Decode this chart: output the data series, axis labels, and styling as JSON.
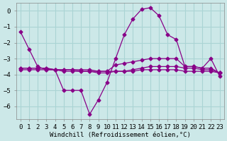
{
  "xlabel": "Windchill (Refroidissement éolien,°C)",
  "background_color": "#cce8e8",
  "grid_color": "#aad4d4",
  "line_color": "#880088",
  "x_ticks": [
    0,
    1,
    2,
    3,
    4,
    5,
    6,
    7,
    8,
    9,
    10,
    11,
    12,
    13,
    14,
    15,
    16,
    17,
    18,
    19,
    20,
    21,
    22,
    23
  ],
  "ylim": [
    -6.8,
    0.5
  ],
  "xlim": [
    -0.5,
    23.5
  ],
  "series1_x": [
    0,
    1,
    2,
    3,
    4,
    5,
    6,
    7,
    8,
    9,
    10,
    11,
    12,
    13,
    14,
    15,
    16,
    17,
    18,
    19,
    20,
    21,
    22,
    23
  ],
  "series1_y": [
    -1.3,
    -2.4,
    -3.5,
    -3.7,
    -3.7,
    -5.0,
    -5.0,
    -5.0,
    -6.5,
    -5.6,
    -4.5,
    -3.0,
    -1.5,
    -0.5,
    0.1,
    0.2,
    -0.3,
    -1.5,
    -1.8,
    -3.5,
    -3.5,
    -3.6,
    -3.0,
    -4.1
  ],
  "series2_x": [
    0,
    1,
    2,
    3,
    4,
    5,
    6,
    7,
    8,
    9,
    10,
    11,
    12,
    13,
    14,
    15,
    16,
    17,
    18,
    19,
    20,
    21,
    22,
    23
  ],
  "series2_y": [
    -3.6,
    -3.6,
    -3.6,
    -3.6,
    -3.7,
    -3.7,
    -3.7,
    -3.7,
    -3.7,
    -3.8,
    -3.8,
    -3.4,
    -3.3,
    -3.2,
    -3.1,
    -3.0,
    -3.0,
    -3.0,
    -3.0,
    -3.5,
    -3.5,
    -3.6,
    -3.6,
    -3.9
  ],
  "series3_x": [
    0,
    1,
    2,
    3,
    4,
    5,
    6,
    7,
    8,
    9,
    10,
    11,
    12,
    13,
    14,
    15,
    16,
    17,
    18,
    19,
    20,
    21,
    22,
    23
  ],
  "series3_y": [
    -3.6,
    -3.6,
    -3.6,
    -3.6,
    -3.7,
    -3.7,
    -3.7,
    -3.8,
    -3.8,
    -3.9,
    -3.9,
    -3.8,
    -3.8,
    -3.7,
    -3.6,
    -3.5,
    -3.5,
    -3.5,
    -3.5,
    -3.6,
    -3.6,
    -3.7,
    -3.7,
    -3.9
  ],
  "series4_x": [
    0,
    1,
    2,
    3,
    4,
    5,
    6,
    7,
    8,
    9,
    10,
    11,
    12,
    13,
    14,
    15,
    16,
    17,
    18,
    19,
    20,
    21,
    22,
    23
  ],
  "series4_y": [
    -3.7,
    -3.7,
    -3.7,
    -3.7,
    -3.7,
    -3.8,
    -3.8,
    -3.8,
    -3.8,
    -3.8,
    -3.8,
    -3.8,
    -3.8,
    -3.8,
    -3.7,
    -3.7,
    -3.7,
    -3.7,
    -3.7,
    -3.8,
    -3.8,
    -3.8,
    -3.8,
    -3.9
  ]
}
